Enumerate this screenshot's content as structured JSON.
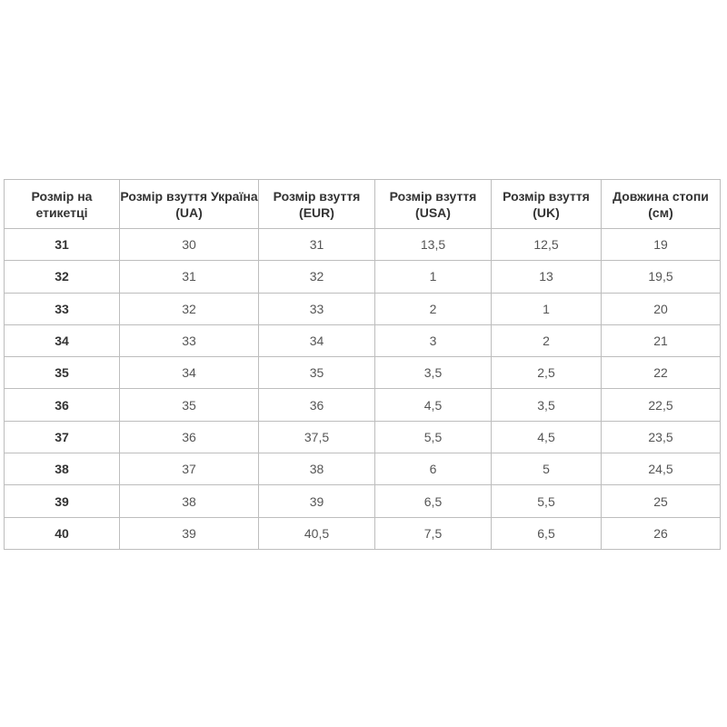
{
  "table": {
    "headers": [
      "Розмір на етикетці",
      "Розмір взуття Україна (UA)",
      "Розмір взуття (EUR)",
      "Розмір взуття (USA)",
      "Розмір взуття (UK)",
      "Довжина стопи (см)"
    ],
    "rows": [
      [
        "31",
        "30",
        "31",
        "13,5",
        "12,5",
        "19"
      ],
      [
        "32",
        "31",
        "32",
        "1",
        "13",
        "19,5"
      ],
      [
        "33",
        "32",
        "33",
        "2",
        "1",
        "20"
      ],
      [
        "34",
        "33",
        "34",
        "3",
        "2",
        "21"
      ],
      [
        "35",
        "34",
        "35",
        "3,5",
        "2,5",
        "22"
      ],
      [
        "36",
        "35",
        "36",
        "4,5",
        "3,5",
        "22,5"
      ],
      [
        "37",
        "36",
        "37,5",
        "5,5",
        "4,5",
        "23,5"
      ],
      [
        "38",
        "37",
        "38",
        "6",
        "5",
        "24,5"
      ],
      [
        "39",
        "38",
        "39",
        "6,5",
        "5,5",
        "25"
      ],
      [
        "40",
        "39",
        "40,5",
        "7,5",
        "6,5",
        "26"
      ]
    ]
  }
}
